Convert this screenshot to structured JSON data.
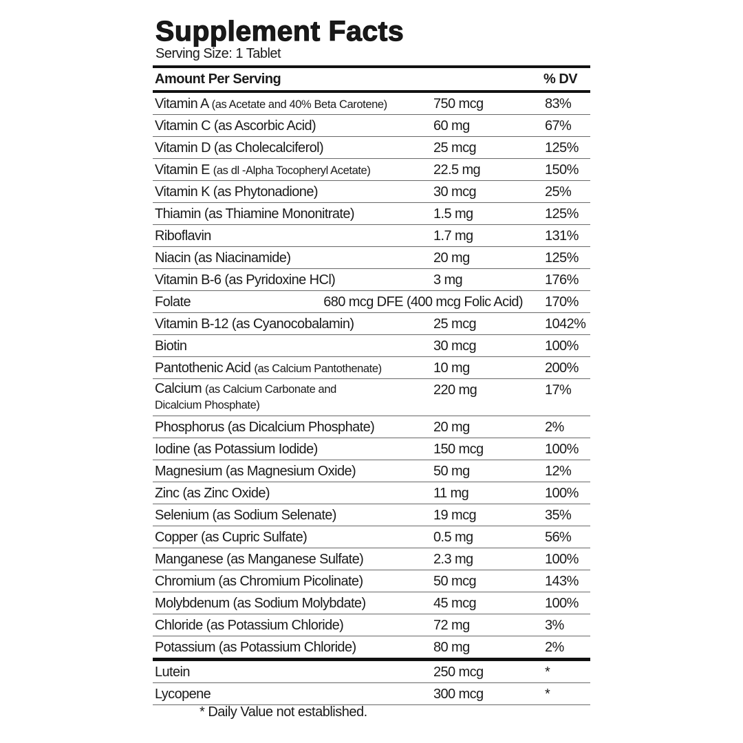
{
  "title": "Supplement Facts",
  "serving_size": "Serving Size: 1 Tablet",
  "header": {
    "amount": "Amount Per Serving",
    "dv": "% DV"
  },
  "rows": [
    {
      "name": "Vitamin A",
      "note": "(as Acetate and 40% Beta Carotene)",
      "amount": "750 mcg",
      "dv": "83%"
    },
    {
      "name": "Vitamin C (as Ascorbic Acid)",
      "amount": "60 mg",
      "dv": "67%"
    },
    {
      "name": "Vitamin D (as Cholecalciferol)",
      "amount": "25 mcg",
      "dv": "125%"
    },
    {
      "name": "Vitamin E",
      "note": "(as dl -Alpha Tocopheryl Acetate)",
      "amount": "22.5 mg",
      "dv": "150%"
    },
    {
      "name": "Vitamin K (as Phytonadione)",
      "amount": "30 mcg",
      "dv": "25%"
    },
    {
      "name": "Thiamin (as Thiamine Mononitrate)",
      "amount": "1.5 mg",
      "dv": "125%"
    },
    {
      "name": "Riboflavin",
      "amount": "1.7 mg",
      "dv": "131%"
    },
    {
      "name": "Niacin (as Niacinamide)",
      "amount": "20 mg",
      "dv": "125%"
    },
    {
      "name": "Vitamin B-6 (as Pyridoxine HCl)",
      "amount": "3 mg",
      "dv": "176%"
    },
    {
      "name": "Folate",
      "amount": "680 mcg DFE (400 mcg Folic Acid)",
      "dv": "170%"
    },
    {
      "name": "Vitamin B-12 (as Cyanocobalamin)",
      "amount": "25 mcg",
      "dv": "1042%"
    },
    {
      "name": "Biotin",
      "amount": "30 mcg",
      "dv": "100%"
    },
    {
      "name": "Pantothenic Acid",
      "note": "(as Calcium Pantothenate)",
      "amount": "10 mg",
      "dv": "200%"
    },
    {
      "name": "Calcium",
      "note": "(as Calcium Carbonate and Dicalcium Phosphate)",
      "amount": "220 mg",
      "dv": "17%"
    },
    {
      "name": "Phosphorus (as Dicalcium Phosphate)",
      "amount": "20 mg",
      "dv": "2%"
    },
    {
      "name": "Iodine (as Potassium Iodide)",
      "amount": "150 mcg",
      "dv": "100%"
    },
    {
      "name": "Magnesium (as Magnesium Oxide)",
      "amount": "50 mg",
      "dv": "12%"
    },
    {
      "name": "Zinc (as Zinc Oxide)",
      "amount": "11 mg",
      "dv": "100%"
    },
    {
      "name": "Selenium (as Sodium Selenate)",
      "amount": "19 mcg",
      "dv": "35%"
    },
    {
      "name": "Copper (as Cupric Sulfate)",
      "amount": "0.5 mg",
      "dv": "56%"
    },
    {
      "name": "Manganese (as Manganese Sulfate)",
      "amount": "2.3 mg",
      "dv": "100%"
    },
    {
      "name": "Chromium (as Chromium Picolinate)",
      "amount": "50 mcg",
      "dv": "143%"
    },
    {
      "name": "Molybdenum (as Sodium Molybdate)",
      "amount": "45 mcg",
      "dv": "100%"
    },
    {
      "name": "Chloride (as Potassium Chloride)",
      "amount": "72 mg",
      "dv": "3%"
    },
    {
      "name": "Potassium (as Potassium Chloride)",
      "amount": "80 mg",
      "dv": "2%"
    }
  ],
  "other_rows": [
    {
      "name": "Lutein",
      "amount": "250 mcg",
      "dv": "*"
    },
    {
      "name": "Lycopene",
      "amount": "300 mcg",
      "dv": "*"
    }
  ],
  "footnote": "* Daily Value not established."
}
